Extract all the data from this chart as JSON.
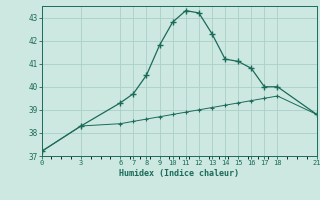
{
  "xlabel": "Humidex (Indice chaleur)",
  "background_color": "#cde8e0",
  "grid_color": "#aacfc8",
  "line_color": "#1a6b5a",
  "x_ticks": [
    0,
    3,
    6,
    7,
    8,
    9,
    10,
    11,
    12,
    13,
    14,
    15,
    16,
    17,
    18,
    21
  ],
  "series1_x": [
    0,
    3,
    6,
    7,
    8,
    9,
    10,
    11,
    12,
    13,
    14,
    15,
    16,
    17,
    18,
    21
  ],
  "series1_y": [
    37.2,
    38.3,
    39.3,
    39.7,
    40.5,
    41.8,
    42.8,
    43.3,
    43.2,
    42.3,
    41.2,
    41.1,
    40.8,
    40.0,
    40.0,
    38.8
  ],
  "series2_x": [
    0,
    3,
    6,
    7,
    8,
    9,
    10,
    11,
    12,
    13,
    14,
    15,
    16,
    17,
    18,
    21
  ],
  "series2_y": [
    37.2,
    38.3,
    38.4,
    38.5,
    38.6,
    38.7,
    38.8,
    38.9,
    39.0,
    39.1,
    39.2,
    39.3,
    39.4,
    39.5,
    39.6,
    38.8
  ],
  "ylim": [
    37.0,
    43.5
  ],
  "xlim": [
    0,
    21
  ],
  "yticks": [
    37,
    38,
    39,
    40,
    41,
    42,
    43
  ]
}
